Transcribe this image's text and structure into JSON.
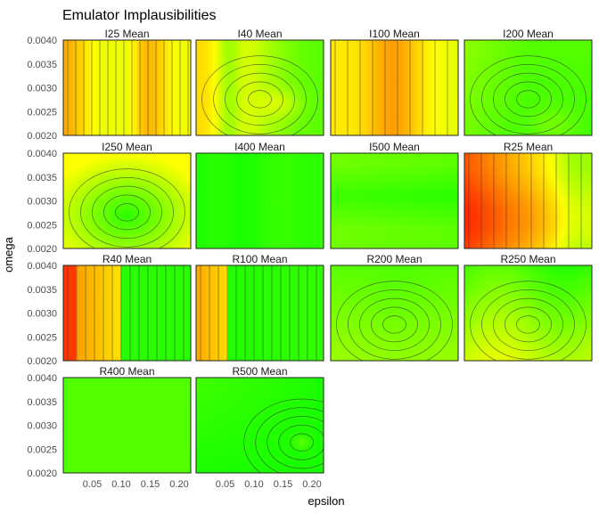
{
  "chart_data": {
    "type": "heatmap",
    "title": "Emulator Implausibilities",
    "xlabel": "epsilon",
    "ylabel": "omega",
    "xlim": [
      0.0,
      0.22
    ],
    "ylim": [
      0.002,
      0.004
    ],
    "x_ticks": [
      "0.05",
      "0.10",
      "0.15",
      "0.20"
    ],
    "y_ticks": [
      "0.0020",
      "0.0025",
      "0.0030",
      "0.0035",
      "0.0040"
    ],
    "x_tick_values": [
      0.05,
      0.1,
      0.15,
      0.2
    ],
    "y_tick_values": [
      0.002,
      0.0025,
      0.003,
      0.0035,
      0.004
    ],
    "grid": false,
    "color_scale": [
      "#00ff00",
      "#ffff00",
      "#ff0000"
    ],
    "panels": [
      {
        "label": "I25 Mean"
      },
      {
        "label": "I40 Mean"
      },
      {
        "label": "I100 Mean"
      },
      {
        "label": "I200 Mean"
      },
      {
        "label": "I250 Mean"
      },
      {
        "label": "I400 Mean"
      },
      {
        "label": "I500 Mean"
      },
      {
        "label": "R25 Mean"
      },
      {
        "label": "R40 Mean"
      },
      {
        "label": "R100 Mean"
      },
      {
        "label": "R200 Mean"
      },
      {
        "label": "R250 Mean"
      },
      {
        "label": "R400 Mean"
      },
      {
        "label": "R500 Mean"
      }
    ]
  }
}
